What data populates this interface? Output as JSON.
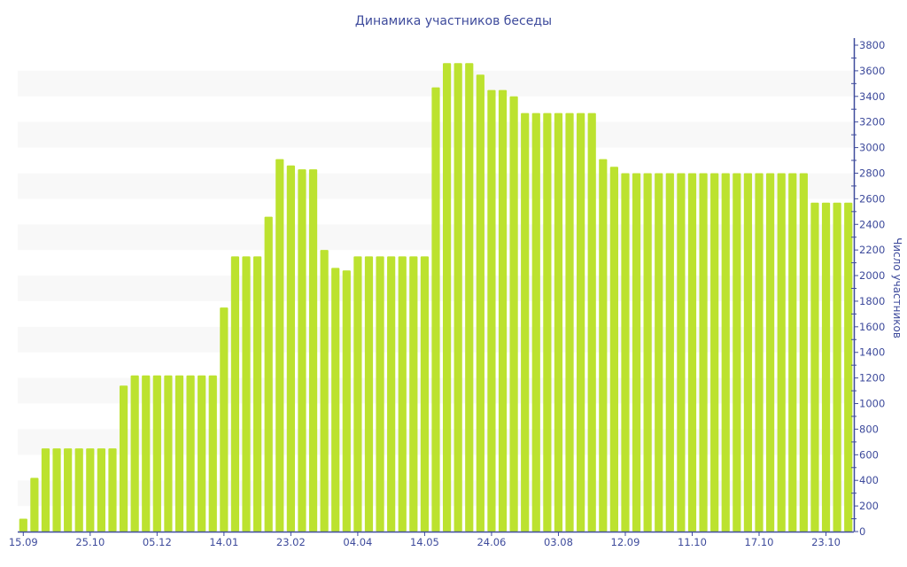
{
  "chart_data": {
    "type": "bar",
    "title": "Динамика участников беседы",
    "xlabel": "",
    "ylabel": "Число участников",
    "ylim": [
      0,
      3800
    ],
    "ytick_step": 200,
    "yminor_step": 100,
    "y_axis_position": "right",
    "grid": "alternating horizontal bands",
    "colors": {
      "bar": "#bce22f",
      "axis": "#3e4b9c",
      "band": "#f8f8f8",
      "text": "#3e4b9c"
    },
    "x_tick_labels": [
      {
        "index": 0,
        "label": "15.09"
      },
      {
        "index": 6,
        "label": "25.10"
      },
      {
        "index": 12,
        "label": "05.12"
      },
      {
        "index": 18,
        "label": "14.01"
      },
      {
        "index": 24,
        "label": "23.02"
      },
      {
        "index": 30,
        "label": "04.04"
      },
      {
        "index": 36,
        "label": "14.05"
      },
      {
        "index": 42,
        "label": "24.06"
      },
      {
        "index": 48,
        "label": "03.08"
      },
      {
        "index": 54,
        "label": "12.09"
      },
      {
        "index": 60,
        "label": "11.10"
      },
      {
        "index": 66,
        "label": "17.10"
      },
      {
        "index": 72,
        "label": "23.10"
      }
    ],
    "values": [
      100,
      420,
      650,
      650,
      650,
      650,
      650,
      650,
      650,
      1140,
      1220,
      1220,
      1220,
      1220,
      1220,
      1220,
      1220,
      1220,
      1750,
      2150,
      2150,
      2150,
      2460,
      2910,
      2860,
      2830,
      2830,
      2200,
      2060,
      2040,
      2150,
      2150,
      2150,
      2150,
      2150,
      2150,
      2150,
      3470,
      3660,
      3660,
      3660,
      3570,
      3450,
      3450,
      3400,
      3270,
      3270,
      3270,
      3270,
      3270,
      3270,
      3270,
      2910,
      2850,
      2800,
      2800,
      2800,
      2800,
      2800,
      2800,
      2800,
      2800,
      2800,
      2800,
      2800,
      2800,
      2800,
      2800,
      2800,
      2800,
      2800,
      2570,
      2570,
      2570,
      2570
    ]
  }
}
